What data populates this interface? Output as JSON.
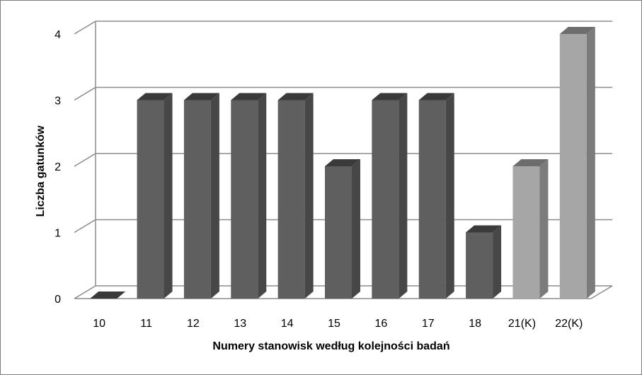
{
  "chart_data": {
    "type": "bar",
    "title": "",
    "xlabel": "Numery stanowisk według kolejności badań",
    "ylabel": "Liczba gatunków",
    "categories": [
      "10",
      "11",
      "12",
      "13",
      "14",
      "15",
      "16",
      "17",
      "18",
      "21(K)",
      "22(K)"
    ],
    "values": [
      0,
      3,
      3,
      3,
      3,
      2,
      3,
      3,
      1,
      2,
      4
    ],
    "highlight": [
      false,
      false,
      false,
      false,
      false,
      false,
      false,
      false,
      false,
      true,
      true
    ],
    "ylim": [
      0,
      4
    ],
    "yticks": [
      "0",
      "1",
      "2",
      "3",
      "4"
    ],
    "grid": true,
    "legend": "none",
    "colors": {
      "bar_front": "#5f5f5f",
      "bar_side": "#474747",
      "bar_top": "#3a3a3a",
      "highlight_front": "#a6a6a6",
      "highlight_side": "#7b7b7b",
      "highlight_top": "#6d6d6d",
      "grid": "#8c8c8c",
      "floor": "#8c8c8c"
    }
  }
}
